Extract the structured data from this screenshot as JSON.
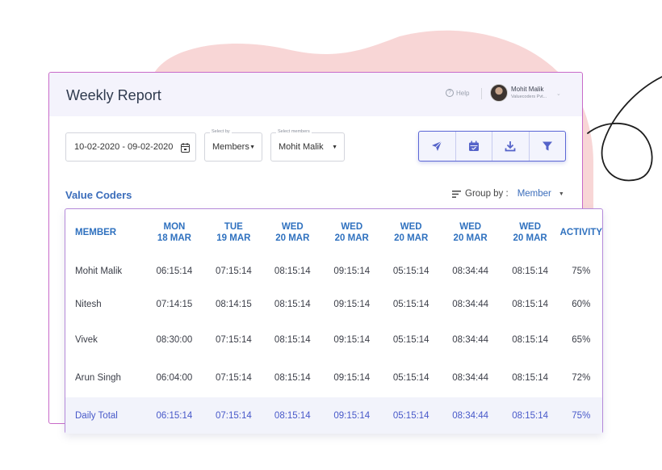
{
  "window": {
    "title": "Weekly Report"
  },
  "header": {
    "help_label": "Help",
    "user_name": "Mohit Malik",
    "user_org": "Valuecoders Pvt..."
  },
  "filters": {
    "date_range": "10-02-2020 - 09-02-2020",
    "select_by_label": "Select by",
    "select_by_value": "Members",
    "select_member_label": "Select members",
    "select_member_value": "Mohit Malik"
  },
  "toolbar": {
    "icons": [
      "send-icon",
      "calendar-icon",
      "download-icon",
      "filter-icon"
    ]
  },
  "group": {
    "title": "Value Coders",
    "group_by_label": "Group by :",
    "group_by_value": "Member"
  },
  "table": {
    "headers": [
      {
        "l1": "MEMBER",
        "l2": ""
      },
      {
        "l1": "MON",
        "l2": "18 MAR"
      },
      {
        "l1": "TUE",
        "l2": "19 MAR"
      },
      {
        "l1": "WED",
        "l2": "20 MAR"
      },
      {
        "l1": "WED",
        "l2": "20 MAR"
      },
      {
        "l1": "WED",
        "l2": "20 MAR"
      },
      {
        "l1": "WED",
        "l2": "20 MAR"
      },
      {
        "l1": "WED",
        "l2": "20 MAR"
      },
      {
        "l1": "ACTIVITY",
        "l2": ""
      }
    ],
    "rows": [
      [
        "Mohit Malik",
        "06:15:14",
        "07:15:14",
        "08:15:14",
        "09:15:14",
        "05:15:14",
        "08:34:44",
        "08:15:14",
        "75%"
      ],
      [
        "Nitesh",
        "07:14:15",
        "08:14:15",
        "08:15:14",
        "09:15:14",
        "05:15:14",
        "08:34:44",
        "08:15:14",
        "60%"
      ],
      [
        "Vivek",
        "08:30:00",
        "07:15:14",
        "08:15:14",
        "09:15:14",
        "05:15:14",
        "08:34:44",
        "08:15:14",
        "65%"
      ],
      [
        "Arun Singh",
        "06:04:00",
        "07:15:14",
        "08:15:14",
        "09:15:14",
        "05:15:14",
        "08:34:44",
        "08:15:14",
        "72%"
      ]
    ],
    "total": [
      "Daily Total",
      "06:15:14",
      "07:15:14",
      "08:15:14",
      "09:15:14",
      "05:15:14",
      "08:34:44",
      "08:15:14",
      "75%"
    ]
  },
  "colors": {
    "accent_blue": "#3b6dbb",
    "card_border": "#c86ac9",
    "toolbar_border": "#5d68d6",
    "blob": "#f7d4d4",
    "total_text": "#4758c9"
  }
}
